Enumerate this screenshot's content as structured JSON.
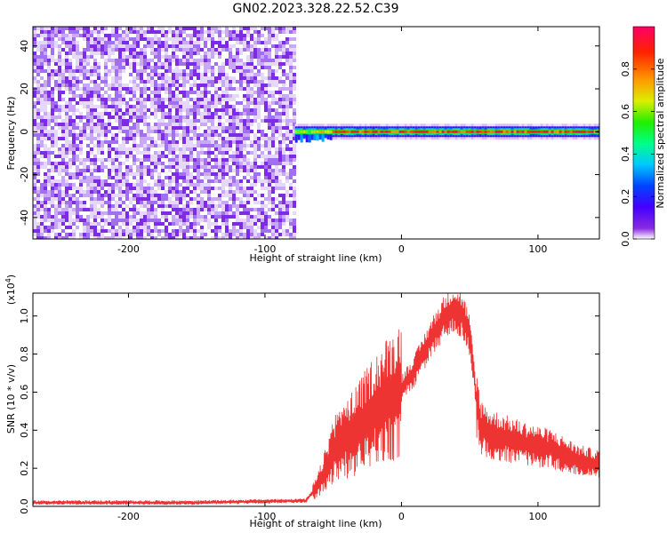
{
  "title": "GN02.2023.328.22.52.C39",
  "chart_data": [
    {
      "type": "heatmap",
      "xlabel": "Height of straight line (km)",
      "ylabel": "Frequency (Hz)",
      "xlim": [
        -270,
        145
      ],
      "ylim": [
        -50,
        49
      ],
      "xticks": [
        -200,
        -100,
        0,
        100
      ],
      "yticks": [
        -40,
        -20,
        0,
        20,
        40
      ],
      "noise_region_x": [
        -270,
        -78
      ],
      "signal_band_x": [
        -78,
        145
      ],
      "signal_band_frequency": 0,
      "colorbar": {
        "label": "Normalized spectral amplitude",
        "range": [
          0,
          1
        ],
        "ticks": [
          0.0,
          0.2,
          0.4,
          0.6,
          0.8
        ],
        "tick_labels": [
          "0.0",
          "0.2",
          "0.4",
          "0.6",
          "0.8"
        ]
      }
    },
    {
      "type": "line",
      "xlabel": "Height of straight line (km)",
      "ylabel": "SNR (10 * v/v)",
      "exponent_label": "(x10",
      "exponent_power": "4",
      "exponent_close": ")",
      "xlim": [
        -270,
        145
      ],
      "ylim": [
        0,
        1.12
      ],
      "xticks": [
        -200,
        -100,
        0,
        100
      ],
      "yticks": [
        0.0,
        0.2,
        0.4,
        0.6,
        0.8,
        1.0
      ],
      "ytick_labels": [
        "0.0",
        "0.2",
        "0.4",
        "0.6",
        "0.8",
        "1.0"
      ],
      "series": [
        {
          "color": "#ee3333",
          "envelope_x": [
            -270,
            -150,
            -70,
            -62,
            -55,
            -50,
            -40,
            -30,
            -20,
            -10,
            0,
            10,
            20,
            30,
            38,
            45,
            50,
            55,
            58,
            65,
            75,
            90,
            110,
            130,
            145
          ],
          "envelope_y": [
            0.02,
            0.02,
            0.03,
            0.1,
            0.2,
            0.3,
            0.36,
            0.42,
            0.5,
            0.56,
            0.62,
            0.72,
            0.86,
            0.98,
            1.04,
            1.0,
            0.9,
            0.55,
            0.42,
            0.38,
            0.36,
            0.33,
            0.3,
            0.24,
            0.22
          ]
        }
      ]
    }
  ]
}
